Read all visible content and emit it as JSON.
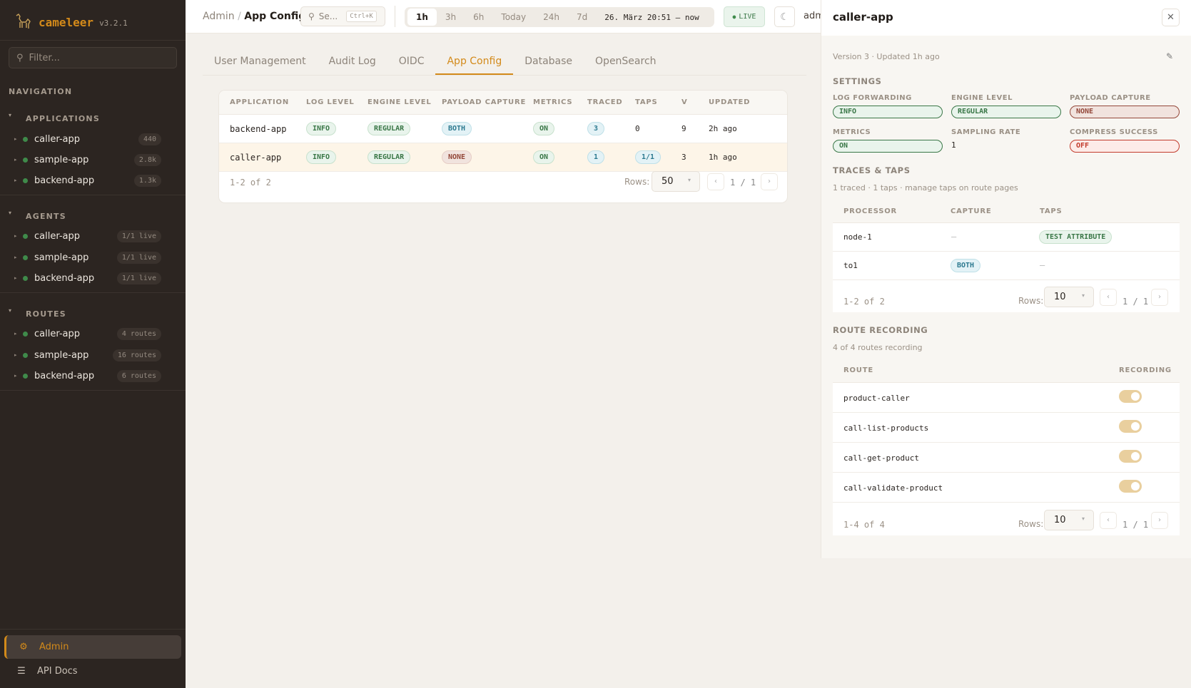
{
  "app": {
    "name": "cameleer",
    "version": "v3.2.1"
  },
  "sidebar": {
    "filter_placeholder": "Filter...",
    "navigation_label": "NAVIGATION",
    "groups": [
      {
        "label": "APPLICATIONS",
        "items": [
          {
            "name": "caller-app",
            "badge": "440"
          },
          {
            "name": "sample-app",
            "badge": "2.8k"
          },
          {
            "name": "backend-app",
            "badge": "1.3k"
          }
        ]
      },
      {
        "label": "AGENTS",
        "items": [
          {
            "name": "caller-app",
            "badge": "1/1 live"
          },
          {
            "name": "sample-app",
            "badge": "1/1 live"
          },
          {
            "name": "backend-app",
            "badge": "1/1 live"
          }
        ]
      },
      {
        "label": "ROUTES",
        "items": [
          {
            "name": "caller-app",
            "badge": "4 routes"
          },
          {
            "name": "sample-app",
            "badge": "16 routes"
          },
          {
            "name": "backend-app",
            "badge": "6 routes"
          }
        ]
      }
    ],
    "admin": "Admin",
    "api_docs": "API Docs"
  },
  "header": {
    "breadcrumb": [
      "Admin",
      "App Config"
    ],
    "search_placeholder": "Se...",
    "search_shortcut": "Ctrl+K",
    "ranges": [
      "1h",
      "3h",
      "6h",
      "Today",
      "24h",
      "7d"
    ],
    "active_range": "1h",
    "date_range": "26. März 20:51  —  now",
    "live": "LIVE",
    "user": "adm"
  },
  "tabs": [
    "User Management",
    "Audit Log",
    "OIDC",
    "App Config",
    "Database",
    "OpenSearch"
  ],
  "active_tab": "App Config",
  "table": {
    "columns": [
      "APPLICATION",
      "LOG LEVEL",
      "ENGINE LEVEL",
      "PAYLOAD CAPTURE",
      "METRICS",
      "TRACED",
      "TAPS",
      "V",
      "UPDATED"
    ],
    "rows": [
      {
        "application": "backend-app",
        "log_level": "INFO",
        "engine_level": "REGULAR",
        "payload_capture": "BOTH",
        "metrics": "ON",
        "traced": "3",
        "taps": "0",
        "v": "9",
        "updated": "2h ago"
      },
      {
        "application": "caller-app",
        "log_level": "INFO",
        "engine_level": "REGULAR",
        "payload_capture": "NONE",
        "metrics": "ON",
        "traced": "1",
        "taps": "1/1",
        "v": "3",
        "updated": "1h ago"
      }
    ],
    "range": "1-2 of 2",
    "rows_label": "Rows:",
    "rows_value": "50",
    "page": "1 / 1"
  },
  "panel": {
    "title": "caller-app",
    "meta": "Version 3 · Updated 1h  ago",
    "settings_label": "SETTINGS",
    "settings": {
      "log_forwarding": {
        "label": "LOG FORWARDING",
        "value": "INFO"
      },
      "engine_level": {
        "label": "ENGINE LEVEL",
        "value": "REGULAR"
      },
      "payload_capture": {
        "label": "PAYLOAD CAPTURE",
        "value": "NONE"
      },
      "metrics": {
        "label": "METRICS",
        "value": "ON"
      },
      "sampling_rate": {
        "label": "SAMPLING RATE",
        "value": "1"
      },
      "compress_success": {
        "label": "COMPRESS SUCCESS",
        "value": "OFF"
      }
    },
    "traces": {
      "label": "TRACES & TAPS",
      "summary": "1 traced · 1 taps · manage taps on route pages",
      "columns": [
        "PROCESSOR",
        "CAPTURE",
        "TAPS"
      ],
      "rows": [
        {
          "processor": "node-1",
          "capture": "—",
          "taps": "TEST ATTRIBUTE"
        },
        {
          "processor": "to1",
          "capture": "BOTH",
          "taps": "—"
        }
      ],
      "range": "1-2 of 2",
      "rows_label": "Rows:",
      "rows_value": "10",
      "page": "1 / 1"
    },
    "recording": {
      "label": "ROUTE RECORDING",
      "summary": "4 of 4 routes recording",
      "columns": [
        "ROUTE",
        "RECORDING"
      ],
      "rows": [
        {
          "route": "product-caller",
          "recording": true
        },
        {
          "route": "call-list-products",
          "recording": true
        },
        {
          "route": "call-get-product",
          "recording": true
        },
        {
          "route": "call-validate-product",
          "recording": true
        }
      ],
      "range": "1-4 of 4",
      "rows_label": "Rows:",
      "rows_value": "10",
      "page": "1 / 1"
    }
  },
  "colors": {
    "accent": "#d38a1a",
    "sidebar": "#2c2521",
    "ok": "#3f8a4a",
    "toggle_on": "#e9cf9e"
  }
}
